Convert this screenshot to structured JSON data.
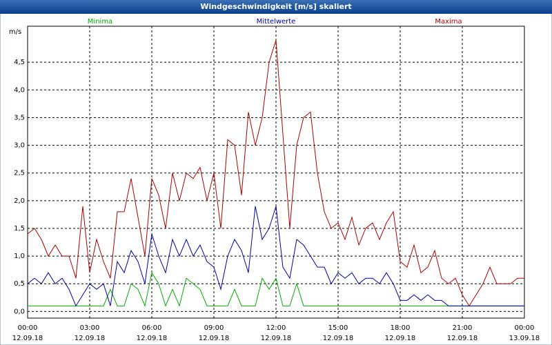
{
  "chart_data": {
    "type": "line",
    "title": "Windgeschwindigkeit [m/s] skaliert",
    "y_unit": "m/s",
    "x": [
      0,
      20,
      40,
      60,
      80,
      100,
      120,
      140,
      160,
      180,
      200,
      220,
      240,
      260,
      280,
      300,
      320,
      340,
      360,
      380,
      400,
      420,
      440,
      460,
      480,
      500,
      520,
      540,
      560,
      580,
      600,
      620,
      640,
      660,
      680,
      700,
      720,
      740,
      760,
      780,
      800,
      820,
      840,
      860,
      880,
      900,
      920,
      940,
      960,
      980,
      1000,
      1020,
      1040,
      1060,
      1080,
      1100,
      1120,
      1140,
      1160,
      1180,
      1200,
      1220,
      1240,
      1260,
      1280,
      1300,
      1320,
      1340,
      1360,
      1380,
      1400,
      1420,
      1440
    ],
    "series": [
      {
        "name": "Minima",
        "color": "#00aa00",
        "values": [
          0.1,
          0.1,
          0.1,
          0.1,
          0.1,
          0.1,
          0.1,
          0.1,
          0.1,
          0.1,
          0.1,
          0.1,
          0.4,
          0.1,
          0.1,
          0.5,
          0.4,
          0.1,
          0.7,
          0.5,
          0.1,
          0.4,
          0.1,
          0.6,
          0.5,
          0.4,
          0.1,
          0.1,
          0.1,
          0.1,
          0.4,
          0.1,
          0.1,
          0.1,
          0.6,
          0.4,
          0.6,
          0.1,
          0.1,
          0.5,
          0.1,
          0.1,
          0.1,
          0.1,
          0.1,
          0.1,
          0.1,
          0.1,
          0.1,
          0.1,
          0.1,
          0.1,
          0.1,
          0.1,
          0.1,
          0.1,
          0.1,
          0.1,
          0.1,
          0.1,
          0.1,
          0.1,
          0.1,
          0.1,
          0.1,
          0.1,
          0.1,
          0.1,
          0.1,
          0.1,
          0.1,
          0.1,
          0.1
        ]
      },
      {
        "name": "Mittelwerte",
        "color": "#0000aa",
        "values": [
          0.5,
          0.6,
          0.5,
          0.7,
          0.5,
          0.6,
          0.4,
          0.1,
          0.3,
          0.5,
          0.4,
          0.5,
          0.1,
          0.9,
          0.7,
          1.1,
          0.9,
          0.5,
          1.4,
          1.0,
          0.7,
          1.3,
          1.0,
          1.3,
          1.0,
          1.2,
          0.9,
          0.8,
          0.4,
          1.0,
          1.3,
          1.1,
          0.7,
          1.9,
          1.3,
          1.5,
          1.9,
          0.8,
          0.6,
          1.3,
          1.2,
          1.0,
          0.8,
          0.8,
          0.5,
          0.7,
          0.6,
          0.7,
          0.5,
          0.6,
          0.6,
          0.5,
          0.7,
          0.5,
          0.2,
          0.2,
          0.3,
          0.2,
          0.3,
          0.2,
          0.2,
          0.1,
          0.1,
          0.1,
          0.1,
          0.1,
          0.1,
          0.1,
          0.1,
          0.1,
          0.1,
          0.1,
          0.1
        ]
      },
      {
        "name": "Maxima",
        "color": "#aa0000",
        "values": [
          1.4,
          1.5,
          1.3,
          1.0,
          1.2,
          1.0,
          1.0,
          0.6,
          1.9,
          0.7,
          1.3,
          0.9,
          0.6,
          1.8,
          1.8,
          2.4,
          1.7,
          1.0,
          2.4,
          2.1,
          1.5,
          2.5,
          2.0,
          2.5,
          2.4,
          2.6,
          2.0,
          2.5,
          1.5,
          3.1,
          3.0,
          2.1,
          3.6,
          3.0,
          3.5,
          4.5,
          4.9,
          3.2,
          1.5,
          3.0,
          3.5,
          3.6,
          2.5,
          1.8,
          1.5,
          1.6,
          1.3,
          1.7,
          1.2,
          1.5,
          1.6,
          1.3,
          1.6,
          1.8,
          0.9,
          0.8,
          1.2,
          0.7,
          0.8,
          1.1,
          0.6,
          0.5,
          0.6,
          0.3,
          0.1,
          0.3,
          0.5,
          0.8,
          0.5,
          0.5,
          0.5,
          0.6,
          0.6
        ]
      }
    ],
    "xlim": [
      0,
      1440
    ],
    "xticks": [
      {
        "value": 0,
        "label": "00:00"
      },
      {
        "value": 180,
        "label": "03:00"
      },
      {
        "value": 360,
        "label": "06:00"
      },
      {
        "value": 540,
        "label": "09:00"
      },
      {
        "value": 720,
        "label": "12:00"
      },
      {
        "value": 900,
        "label": "15:00"
      },
      {
        "value": 1080,
        "label": "18:00"
      },
      {
        "value": 1260,
        "label": "21:00"
      },
      {
        "value": 1440,
        "label": "00:00"
      }
    ],
    "xtick_dates": [
      "12.09.18",
      "12.09.18",
      "12.09.18",
      "12.09.18",
      "12.09.18",
      "12.09.18",
      "12.09.18",
      "12.09.18",
      "13.09.18"
    ],
    "ylim": [
      -0.12,
      5.15
    ],
    "yticks": [
      {
        "value": 0,
        "label": "0,0"
      },
      {
        "value": 0.5,
        "label": "0,5"
      },
      {
        "value": 1,
        "label": "1,0"
      },
      {
        "value": 1.5,
        "label": "1,5"
      },
      {
        "value": 2,
        "label": "2,0"
      },
      {
        "value": 2.5,
        "label": "2,5"
      },
      {
        "value": 3,
        "label": "3,0"
      },
      {
        "value": 3.5,
        "label": "3,5"
      },
      {
        "value": 4,
        "label": "4,0"
      },
      {
        "value": 4.5,
        "label": "4,5"
      }
    ],
    "grid": true
  }
}
